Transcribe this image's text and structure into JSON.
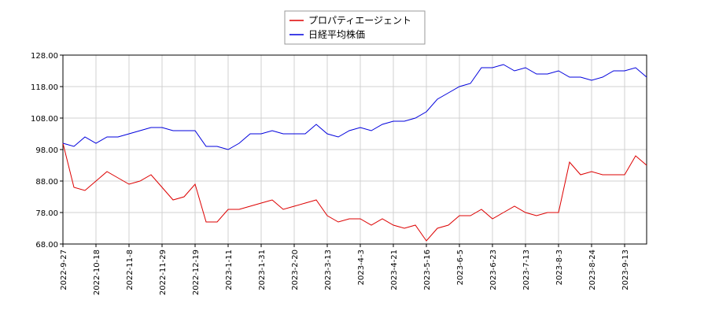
{
  "chart_data": {
    "type": "line",
    "categories": [
      "2022-9-27",
      null,
      null,
      "2022-10-18",
      null,
      null,
      "2022-11-8",
      null,
      null,
      "2022-11-29",
      null,
      null,
      "2022-12-19",
      null,
      null,
      "2023-1-11",
      null,
      null,
      "2023-1-31",
      null,
      null,
      "2023-2-20",
      null,
      null,
      "2023-3-13",
      null,
      null,
      "2023-4-3",
      null,
      null,
      "2023-4-21",
      null,
      null,
      "2023-5-16",
      null,
      null,
      "2023-6-5",
      null,
      null,
      "2023-6-23",
      null,
      null,
      "2023-7-13",
      null,
      null,
      "2023-8-3",
      null,
      null,
      "2023-8-24",
      null,
      null,
      "2023-9-13",
      null,
      null
    ],
    "series": [
      {
        "name": "プロパティエージェント",
        "color": "#dd0000",
        "values": [
          100,
          86,
          85,
          88,
          91,
          89,
          87,
          88,
          90,
          86,
          82,
          83,
          87,
          75,
          75,
          79,
          79,
          80,
          81,
          82,
          79,
          80,
          81,
          82,
          77,
          75,
          76,
          76,
          74,
          76,
          74,
          73,
          74,
          69,
          73,
          74,
          77,
          77,
          79,
          76,
          78,
          80,
          78,
          77,
          78,
          78,
          94,
          90,
          91,
          90,
          90,
          90,
          96,
          93
        ]
      },
      {
        "name": "日経平均株価",
        "color": "#0000dd",
        "values": [
          100,
          99,
          102,
          100,
          102,
          102,
          103,
          104,
          105,
          105,
          104,
          104,
          104,
          99,
          99,
          98,
          100,
          103,
          103,
          104,
          103,
          103,
          103,
          106,
          103,
          102,
          104,
          105,
          104,
          106,
          107,
          107,
          108,
          110,
          114,
          116,
          118,
          119,
          124,
          124,
          125,
          123,
          124,
          122,
          122,
          123,
          121,
          121,
          120,
          121,
          123,
          123,
          124,
          121
        ]
      }
    ],
    "ylim": [
      68,
      128
    ],
    "yticks": [
      {
        "value": 68,
        "label": "68.00"
      },
      {
        "value": 78,
        "label": "78.00"
      },
      {
        "value": 88,
        "label": "88.00"
      },
      {
        "value": 98,
        "label": "98.00"
      },
      {
        "value": 108,
        "label": "108.00"
      },
      {
        "value": 118,
        "label": "118.00"
      },
      {
        "value": 128,
        "label": "128.00"
      }
    ],
    "grid": true,
    "legend": "top"
  }
}
